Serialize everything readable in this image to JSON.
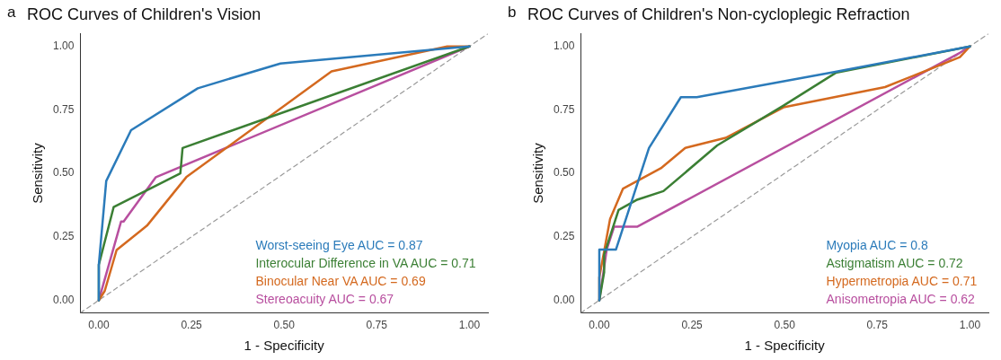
{
  "chart_data": [
    {
      "type": "line",
      "title": "ROC Curves of Children's Vision",
      "xlabel": "1 - Specificity",
      "ylabel": "Sensitivity",
      "annotations": [
        "a"
      ],
      "xlim": [
        -0.05,
        1.05
      ],
      "ylim": [
        -0.05,
        1.05
      ],
      "xticks": [
        {
          "value": 0,
          "label": "0.00"
        },
        {
          "value": 0.25,
          "label": "0.25"
        },
        {
          "value": 0.5,
          "label": "0.50"
        },
        {
          "value": 0.75,
          "label": "0.75"
        },
        {
          "value": 1,
          "label": "1.00"
        }
      ],
      "yticks": [
        {
          "value": 0,
          "label": "0.00"
        },
        {
          "value": 0.25,
          "label": "0.25"
        },
        {
          "value": 0.5,
          "label": "0.50"
        },
        {
          "value": 0.75,
          "label": "0.75"
        },
        {
          "value": 1,
          "label": "1.00"
        }
      ],
      "grid": false,
      "legend": "bottom right",
      "marker": "none",
      "series": [
        {
          "name": "Worst-seeing Eye AUC = 0.87",
          "color": "#2b7bba",
          "x": [
            0,
            0,
            0.02,
            0.087,
            0.267,
            0.49,
            1
          ],
          "values": [
            0,
            0.14,
            0.47,
            0.67,
            0.835,
            0.933,
            1
          ]
        },
        {
          "name": "Interocular Difference in VA AUC = 0.71",
          "color": "#3b7f34",
          "x": [
            0,
            0,
            0.04,
            0.22,
            0.226,
            1
          ],
          "values": [
            0,
            0.14,
            0.367,
            0.5,
            0.6,
            1
          ]
        },
        {
          "name": "Binocular Near VA AUC = 0.69",
          "color": "#d4691f",
          "x": [
            0,
            0.016,
            0.048,
            0.13,
            0.236,
            0.628,
            0.94,
            1
          ],
          "values": [
            0,
            0.037,
            0.198,
            0.294,
            0.485,
            0.902,
            1,
            1
          ]
        },
        {
          "name": "Stereoacuity AUC = 0.67",
          "color": "#b84f9f",
          "x": [
            0,
            0.06,
            0.067,
            0.154,
            1
          ],
          "values": [
            0,
            0.31,
            0.31,
            0.485,
            1
          ]
        },
        {
          "type": "line",
          "line_style": "dashed",
          "color": "#999999",
          "x": [
            -0.05,
            1.05
          ],
          "values": [
            -0.05,
            1.05
          ]
        }
      ]
    },
    {
      "type": "line",
      "title": "ROC Curves of Children's Non-cycloplegic Refraction",
      "xlabel": "1 - Specificity",
      "ylabel": "Sensitivity",
      "annotations": [
        "b"
      ],
      "xlim": [
        -0.05,
        1.05
      ],
      "ylim": [
        -0.05,
        1.05
      ],
      "xticks": [
        {
          "value": 0,
          "label": "0.00"
        },
        {
          "value": 0.25,
          "label": "0.25"
        },
        {
          "value": 0.5,
          "label": "0.50"
        },
        {
          "value": 0.75,
          "label": "0.75"
        },
        {
          "value": 1,
          "label": "1.00"
        }
      ],
      "yticks": [
        {
          "value": 0,
          "label": "0.00"
        },
        {
          "value": 0.25,
          "label": "0.25"
        },
        {
          "value": 0.5,
          "label": "0.50"
        },
        {
          "value": 0.75,
          "label": "0.75"
        },
        {
          "value": 1,
          "label": "1.00"
        }
      ],
      "grid": false,
      "legend": "bottom right",
      "marker": "none",
      "series": [
        {
          "name": "Myopia AUC = 0.8",
          "color": "#2b7bba",
          "x": [
            0,
            0,
            0.045,
            0.134,
            0.22,
            0.263,
            0.637,
            1
          ],
          "values": [
            0,
            0.2,
            0.2,
            0.6,
            0.8,
            0.8,
            0.9,
            1
          ]
        },
        {
          "name": "Astigmatism AUC = 0.72",
          "color": "#3b7f34",
          "x": [
            0,
            0.013,
            0.013,
            0.052,
            0.1,
            0.173,
            0.318,
            0.497,
            0.638,
            1
          ],
          "values": [
            0,
            0.11,
            0.18,
            0.356,
            0.395,
            0.43,
            0.61,
            0.767,
            0.896,
            1
          ]
        },
        {
          "name": "Hypermetropia AUC = 0.71",
          "color": "#d4691f",
          "x": [
            0,
            0,
            0.029,
            0.064,
            0.166,
            0.232,
            0.341,
            0.497,
            0.771,
            0.973,
            1
          ],
          "values": [
            0,
            0.09,
            0.32,
            0.44,
            0.52,
            0.6,
            0.64,
            0.76,
            0.84,
            0.958,
            1
          ]
        },
        {
          "name": "Anisometropia AUC = 0.62",
          "color": "#b84f9f",
          "x": [
            0,
            0.02,
            0.04,
            0.103,
            0.973,
            1
          ],
          "values": [
            0,
            0.2,
            0.29,
            0.29,
            0.975,
            1
          ]
        },
        {
          "type": "line",
          "line_style": "dashed",
          "color": "#999999",
          "x": [
            -0.05,
            1.05
          ],
          "values": [
            -0.05,
            1.05
          ]
        }
      ]
    }
  ]
}
